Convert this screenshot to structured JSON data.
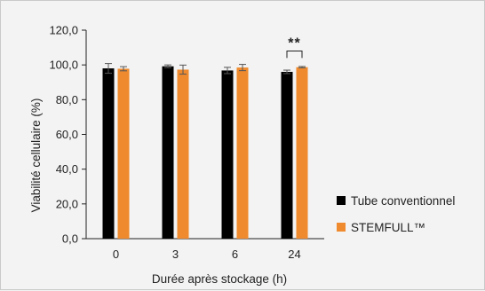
{
  "chart_data": {
    "type": "bar",
    "categories": [
      "0",
      "3",
      "6",
      "24"
    ],
    "series": [
      {
        "name": "Tube conventionnel",
        "color": "#000000",
        "values": [
          98.0,
          99.2,
          96.8,
          96.0
        ],
        "errors": [
          2.8,
          0.8,
          1.8,
          1.0
        ]
      },
      {
        "name": "STEMFULL™",
        "color": "#ef8a2e",
        "values": [
          97.8,
          97.3,
          98.5,
          98.7
        ],
        "errors": [
          1.2,
          2.6,
          1.8,
          0.4
        ]
      }
    ],
    "xlabel": "Durée après stockage (h)",
    "ylabel": "Viabilité cellulaire (%)",
    "ylim": [
      0,
      120
    ],
    "yticks": [
      "0,0",
      "20,0",
      "40,0",
      "60,0",
      "80,0",
      "100,0",
      "120,0"
    ],
    "annotation": {
      "text": "**",
      "category": "24"
    },
    "legend_position": "right",
    "grid": false
  }
}
